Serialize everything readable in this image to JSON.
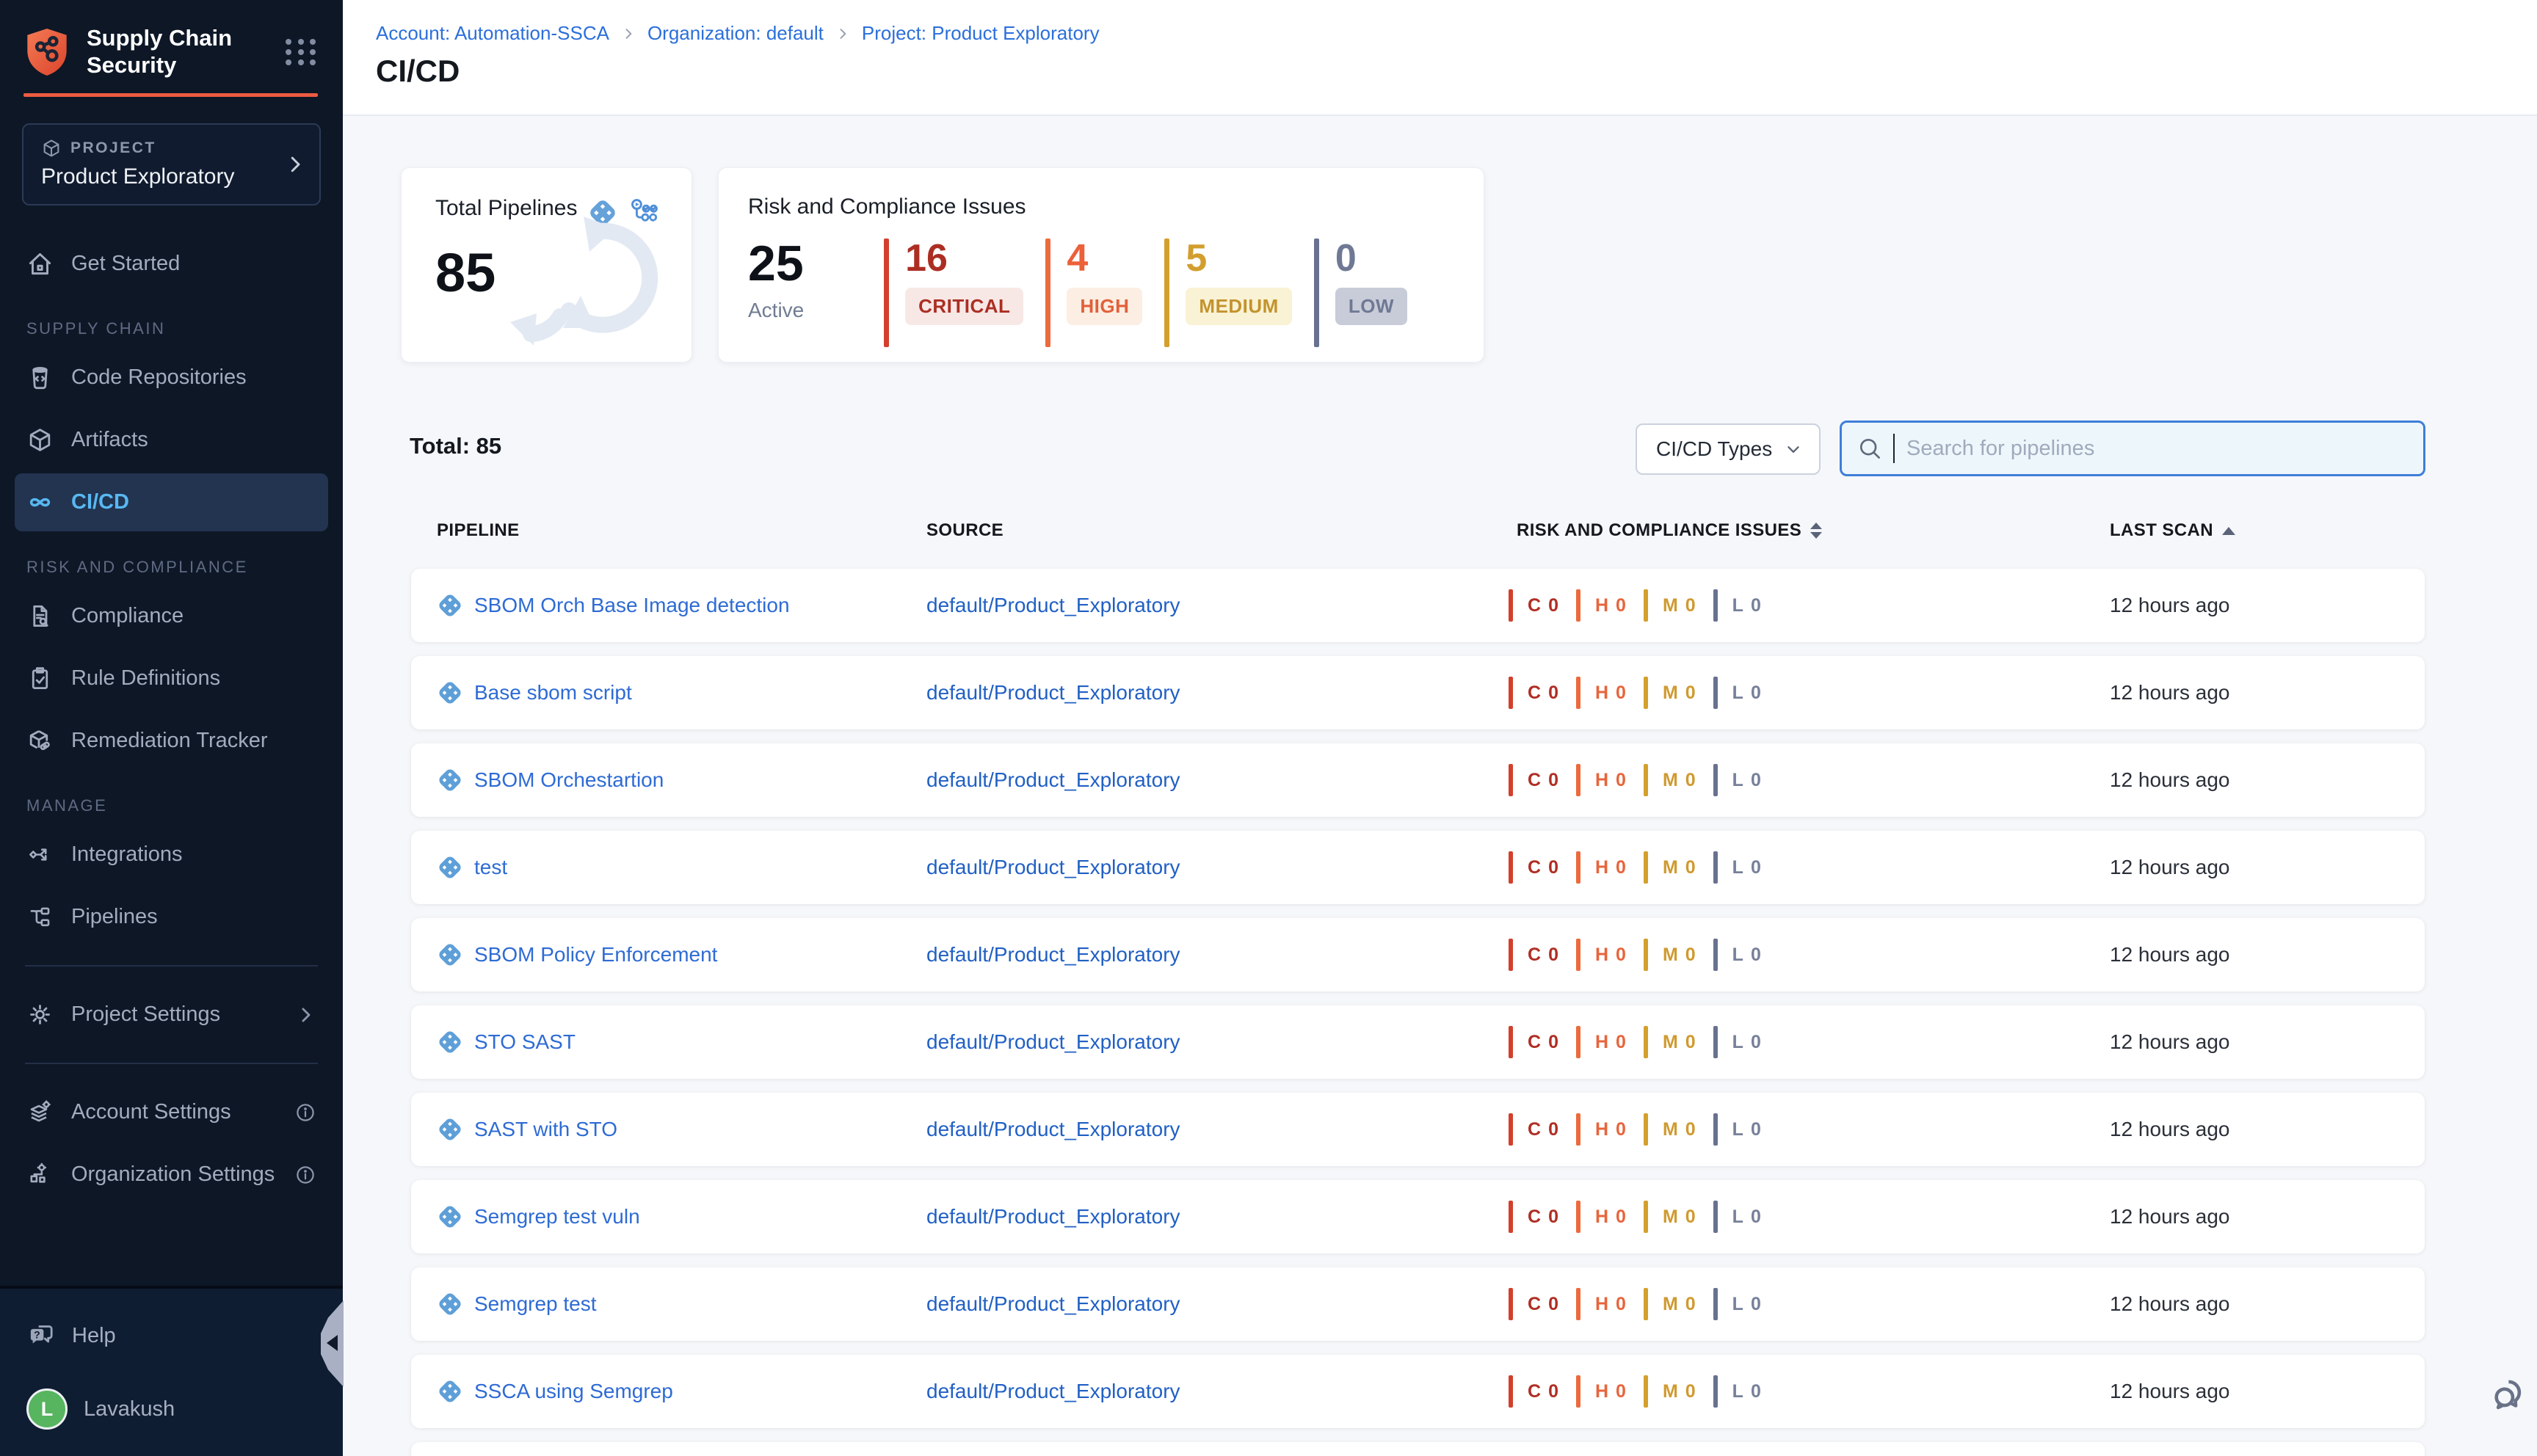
{
  "app": {
    "brand": "Supply Chain Security"
  },
  "sidebar": {
    "project_label": "PROJECT",
    "project_name": "Product Exploratory",
    "nav": {
      "get_started": "Get Started",
      "section_supply_chain": "SUPPLY CHAIN",
      "code_repositories": "Code Repositories",
      "artifacts": "Artifacts",
      "cicd": "CI/CD",
      "section_risk": "RISK AND COMPLIANCE",
      "compliance": "Compliance",
      "rule_definitions": "Rule Definitions",
      "remediation_tracker": "Remediation Tracker",
      "section_manage": "MANAGE",
      "integrations": "Integrations",
      "pipelines": "Pipelines",
      "project_settings": "Project Settings",
      "account_settings": "Account Settings",
      "organization_settings": "Organization Settings"
    },
    "help": "Help",
    "user": {
      "name": "Lavakush",
      "initial": "L",
      "avatar_color": "#57b45f"
    }
  },
  "header": {
    "breadcrumbs": [
      "Account: Automation-SSCA",
      "Organization: default",
      "Project: Product Exploratory"
    ],
    "title": "CI/CD"
  },
  "summary": {
    "total_pipelines": {
      "title": "Total Pipelines",
      "value": "85"
    },
    "risk": {
      "title": "Risk and Compliance Issues",
      "active_value": "25",
      "active_label": "Active",
      "severities": [
        {
          "label": "CRITICAL",
          "value": "16",
          "number_color": "#ac2e23",
          "bar_color": "#d2402c",
          "badge_bg": "#f7e8e6",
          "badge_text": "#ac2e23"
        },
        {
          "label": "HIGH",
          "value": "4",
          "number_color": "#eb6139",
          "bar_color": "#ec6a3c",
          "badge_bg": "#fceee2",
          "badge_text": "#e2603b"
        },
        {
          "label": "MEDIUM",
          "value": "5",
          "number_color": "#d29e2e",
          "bar_color": "#d4a02c",
          "badge_bg": "#faf2d4",
          "badge_text": "#c3932e"
        },
        {
          "label": "LOW",
          "value": "0",
          "number_color": "#6f7994",
          "bar_color": "#68718f",
          "badge_bg": "#c8ccd9",
          "badge_text": "#6f7994"
        }
      ]
    }
  },
  "toolbar": {
    "total_label": "Total: 85",
    "filter_label": "CI/CD Types",
    "search_placeholder": "Search for pipelines"
  },
  "table": {
    "columns": [
      "PIPELINE",
      "SOURCE",
      "RISK AND COMPLIANCE ISSUES",
      "LAST SCAN"
    ],
    "row_severities": [
      {
        "short": "C",
        "bar_color": "#d2402c",
        "text_color": "#b02e24"
      },
      {
        "short": "H",
        "bar_color": "#ec6a3c",
        "text_color": "#e7653c"
      },
      {
        "short": "M",
        "bar_color": "#d4a02c",
        "text_color": "#d09a30"
      },
      {
        "short": "L",
        "bar_color": "#68718f",
        "text_color": "#77809a"
      }
    ],
    "rows": [
      {
        "name": "SBOM Orch Base Image detection",
        "source": "default/Product_Exploratory",
        "counts": [
          "0",
          "0",
          "0",
          "0"
        ],
        "last_scan": "12 hours ago"
      },
      {
        "name": "Base sbom script",
        "source": "default/Product_Exploratory",
        "counts": [
          "0",
          "0",
          "0",
          "0"
        ],
        "last_scan": "12 hours ago"
      },
      {
        "name": "SBOM Orchestartion",
        "source": "default/Product_Exploratory",
        "counts": [
          "0",
          "0",
          "0",
          "0"
        ],
        "last_scan": "12 hours ago"
      },
      {
        "name": "test",
        "source": "default/Product_Exploratory",
        "counts": [
          "0",
          "0",
          "0",
          "0"
        ],
        "last_scan": "12 hours ago"
      },
      {
        "name": "SBOM Policy Enforcement",
        "source": "default/Product_Exploratory",
        "counts": [
          "0",
          "0",
          "0",
          "0"
        ],
        "last_scan": "12 hours ago"
      },
      {
        "name": "STO SAST",
        "source": "default/Product_Exploratory",
        "counts": [
          "0",
          "0",
          "0",
          "0"
        ],
        "last_scan": "12 hours ago"
      },
      {
        "name": "SAST with STO",
        "source": "default/Product_Exploratory",
        "counts": [
          "0",
          "0",
          "0",
          "0"
        ],
        "last_scan": "12 hours ago"
      },
      {
        "name": "Semgrep test vuln",
        "source": "default/Product_Exploratory",
        "counts": [
          "0",
          "0",
          "0",
          "0"
        ],
        "last_scan": "12 hours ago"
      },
      {
        "name": "Semgrep test",
        "source": "default/Product_Exploratory",
        "counts": [
          "0",
          "0",
          "0",
          "0"
        ],
        "last_scan": "12 hours ago"
      },
      {
        "name": "SSCA using Semgrep",
        "source": "default/Product_Exploratory",
        "counts": [
          "0",
          "0",
          "0",
          "0"
        ],
        "last_scan": "12 hours ago"
      }
    ]
  }
}
